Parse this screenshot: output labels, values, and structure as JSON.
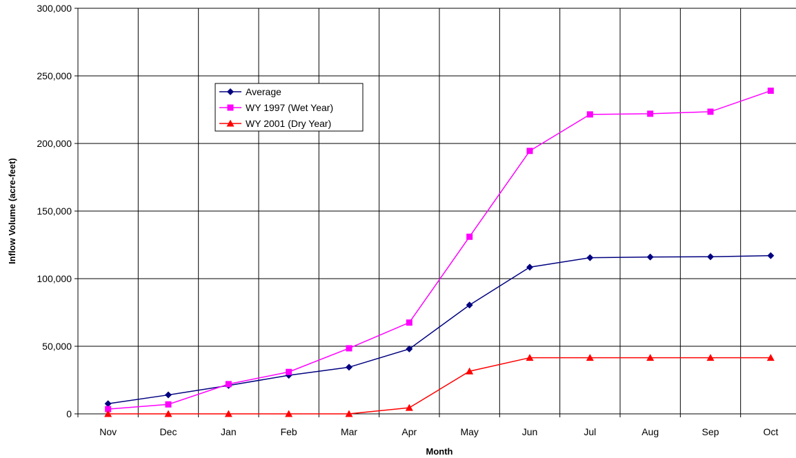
{
  "chart_data": {
    "type": "line",
    "title": "",
    "xlabel": "Month",
    "ylabel": "Inflow Volume (acre-feet)",
    "categories": [
      "Nov",
      "Dec",
      "Jan",
      "Feb",
      "Mar",
      "Apr",
      "May",
      "Jun",
      "Jul",
      "Aug",
      "Sep",
      "Oct"
    ],
    "ylim": [
      0,
      300000
    ],
    "yticks": [
      0,
      50000,
      100000,
      150000,
      200000,
      250000,
      300000
    ],
    "ytick_labels": [
      "0",
      "50,000",
      "100,000",
      "150,000",
      "200,000",
      "250,000",
      "300,000"
    ],
    "grid": true,
    "legend_position": "upper-left",
    "series": [
      {
        "name": "Average",
        "color": "#000080",
        "marker": "diamond",
        "values": [
          7500,
          14000,
          21000,
          28500,
          34500,
          48000,
          80500,
          108500,
          115500,
          116000,
          116200,
          117000
        ]
      },
      {
        "name": "WY 1997 (Wet Year)",
        "color": "#ff00ff",
        "marker": "square",
        "values": [
          3500,
          7000,
          22000,
          31000,
          48500,
          67500,
          131000,
          194500,
          221500,
          222000,
          223500,
          239000
        ]
      },
      {
        "name": "WY 2001 (Dry Year)",
        "color": "#ff0000",
        "marker": "triangle",
        "values": [
          0,
          0,
          0,
          0,
          0,
          4500,
          31500,
          41500,
          41500,
          41500,
          41500,
          41500
        ]
      }
    ]
  }
}
